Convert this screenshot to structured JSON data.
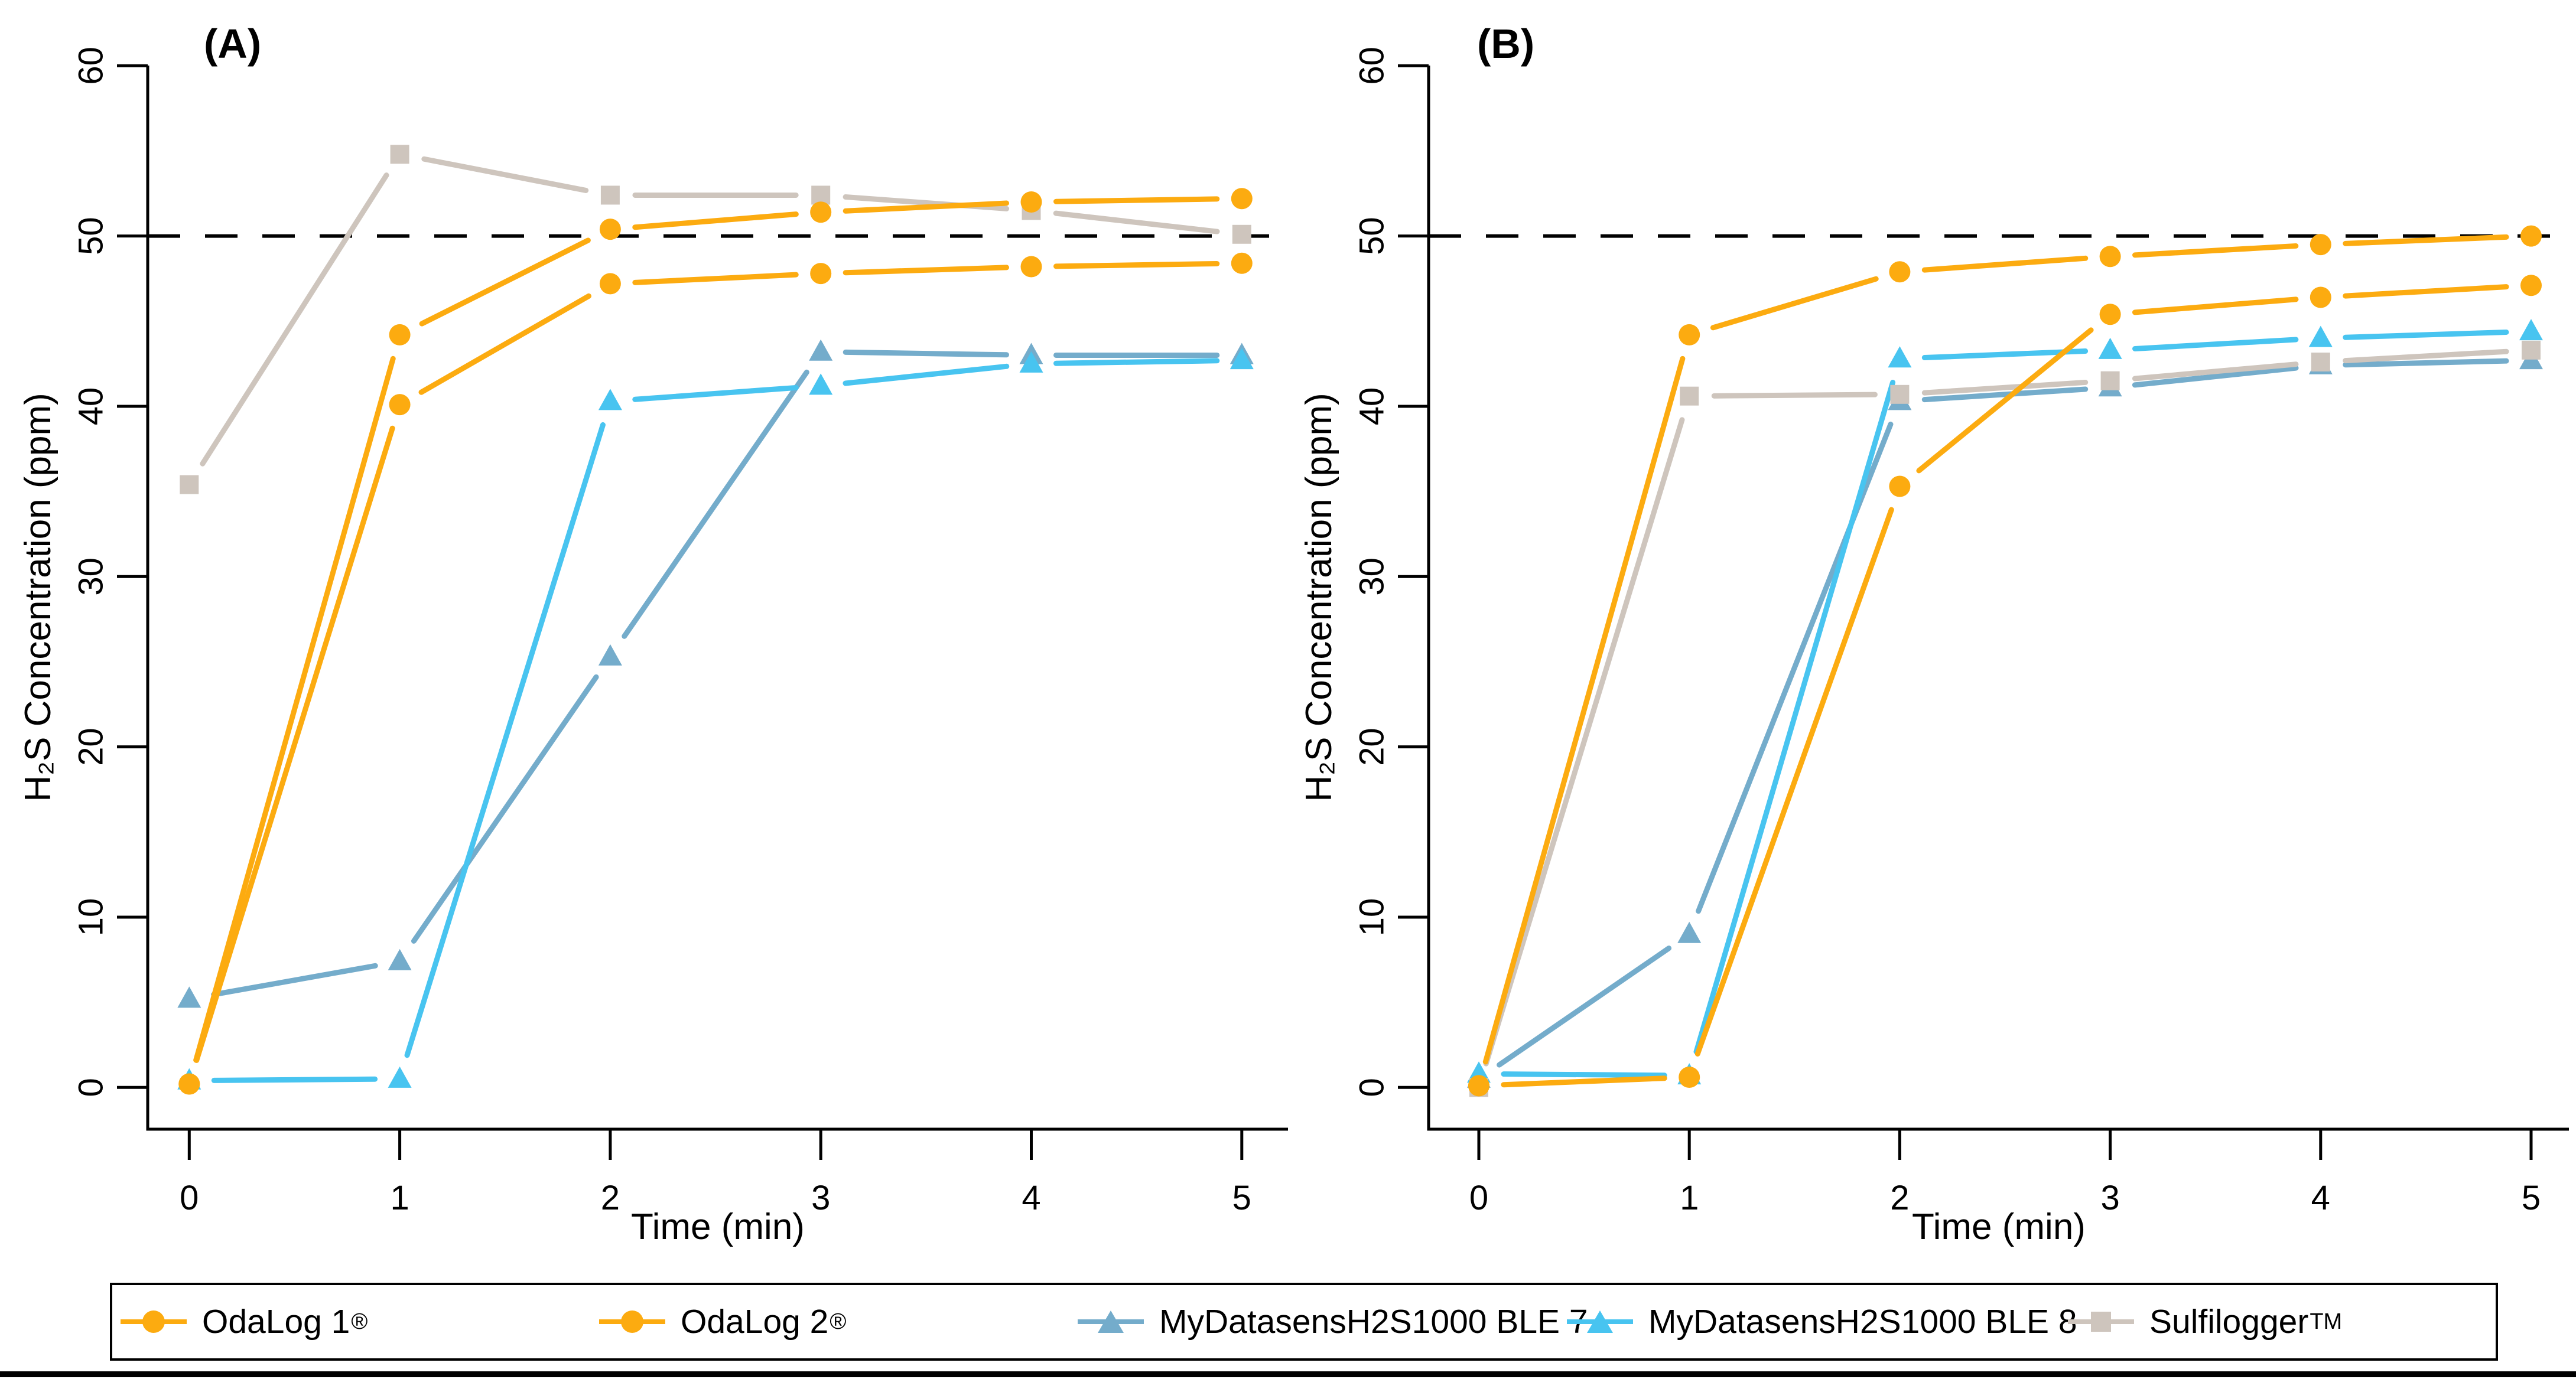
{
  "figure": {
    "background": "#ffffff",
    "text_color": "#000000",
    "reference_line": {
      "value": 50,
      "style": "dashed",
      "color": "#000000"
    }
  },
  "colors": {
    "odalog": "#FCAB10",
    "ble7": "#74ACCB",
    "ble8": "#48C4F0",
    "sulfilogger": "#CEC5BD"
  },
  "legend": {
    "items": [
      {
        "label": "OdaLog 1",
        "sup": "®",
        "marker": "circle",
        "color": "#FCAB10"
      },
      {
        "label": "OdaLog 2",
        "sup": "®",
        "marker": "circle",
        "color": "#FCAB10"
      },
      {
        "label": "MyDatasensH2S1000 BLE 7",
        "sup": "",
        "marker": "triangle",
        "color": "#74ACCB"
      },
      {
        "label": "MyDatasensH2S1000 BLE 8",
        "sup": "",
        "marker": "triangle",
        "color": "#48C4F0"
      },
      {
        "label": "Sulfilogger",
        "sup": "TM",
        "marker": "square",
        "color": "#CEC5BD"
      }
    ]
  },
  "chart_data": [
    {
      "type": "line",
      "title": "(A)",
      "xlabel": "Time (min)",
      "ylabel": "H₂S Concentration  (ppm)",
      "x": [
        0,
        1,
        2,
        3,
        4,
        5
      ],
      "xlim": [
        0,
        5
      ],
      "ylim": [
        0,
        60
      ],
      "yticks": [
        0,
        10,
        20,
        30,
        40,
        50,
        60
      ],
      "grid": false,
      "legend_position": "bottom",
      "refline_y": 50,
      "series": [
        {
          "name": "OdaLog 1®",
          "marker": "circle",
          "color": "#FCAB10",
          "values": [
            0.2,
            44.2,
            50.4,
            51.4,
            52.0,
            52.2
          ]
        },
        {
          "name": "OdaLog 2®",
          "marker": "circle",
          "color": "#FCAB10",
          "values": [
            0.2,
            40.1,
            47.2,
            47.8,
            48.2,
            48.4
          ]
        },
        {
          "name": "MyDatasensH2S1000 BLE 7",
          "marker": "triangle",
          "color": "#74ACCB",
          "values": [
            5.2,
            7.4,
            25.3,
            43.2,
            43.0,
            43.0
          ]
        },
        {
          "name": "MyDatasensH2S1000 BLE 8",
          "marker": "triangle",
          "color": "#48C4F0",
          "values": [
            0.4,
            0.5,
            40.3,
            41.2,
            42.5,
            42.7
          ]
        },
        {
          "name": "SulfiloggerTM",
          "marker": "square",
          "color": "#CEC5BD",
          "values": [
            35.4,
            54.8,
            52.4,
            52.4,
            51.5,
            50.1
          ]
        }
      ]
    },
    {
      "type": "line",
      "title": "(B)",
      "xlabel": "Time (min)",
      "ylabel": "H₂S Concentration  (ppm)",
      "x": [
        0,
        1,
        2,
        3,
        4,
        5
      ],
      "xlim": [
        0,
        5
      ],
      "ylim": [
        0,
        60
      ],
      "yticks": [
        0,
        10,
        20,
        30,
        40,
        50,
        60
      ],
      "grid": false,
      "legend_position": "bottom",
      "refline_y": 50,
      "series": [
        {
          "name": "OdaLog 1®",
          "marker": "circle",
          "color": "#FCAB10",
          "values": [
            0.1,
            44.2,
            47.9,
            48.8,
            49.5,
            50.0
          ]
        },
        {
          "name": "OdaLog 2®",
          "marker": "circle",
          "color": "#FCAB10",
          "values": [
            0.1,
            0.6,
            35.3,
            45.4,
            46.4,
            47.1
          ]
        },
        {
          "name": "MyDatasensH2S1000 BLE 7",
          "marker": "triangle",
          "color": "#74ACCB",
          "values": [
            0.5,
            9.0,
            40.3,
            41.1,
            42.4,
            42.7
          ]
        },
        {
          "name": "MyDatasensH2S1000 BLE 8",
          "marker": "triangle",
          "color": "#48C4F0",
          "values": [
            0.8,
            0.7,
            42.8,
            43.3,
            44.0,
            44.4
          ]
        },
        {
          "name": "SulfiloggerTM",
          "marker": "square",
          "color": "#CEC5BD",
          "values": [
            0.0,
            40.6,
            40.7,
            41.5,
            42.6,
            43.3
          ]
        }
      ]
    }
  ]
}
